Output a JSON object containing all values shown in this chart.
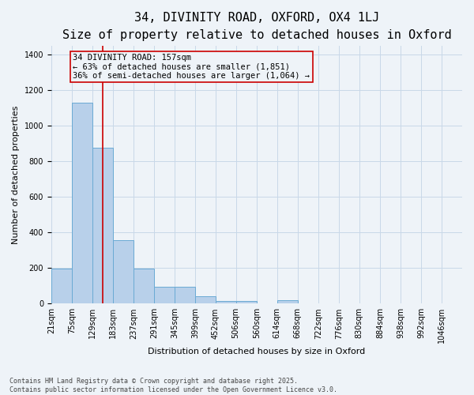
{
  "title_line1": "34, DIVINITY ROAD, OXFORD, OX4 1LJ",
  "title_line2": "Size of property relative to detached houses in Oxford",
  "xlabel": "Distribution of detached houses by size in Oxford",
  "ylabel": "Number of detached properties",
  "bar_edges": [
    21,
    75,
    129,
    183,
    237,
    291,
    345,
    399,
    452,
    506,
    560,
    614,
    668,
    722,
    776,
    830,
    884,
    938,
    992,
    1046,
    1100
  ],
  "bar_heights": [
    195,
    1130,
    875,
    355,
    195,
    95,
    95,
    40,
    15,
    15,
    0,
    20,
    0,
    0,
    0,
    0,
    0,
    0,
    0,
    0
  ],
  "bar_color": "#b8d0ea",
  "bar_edge_color": "#6aaad4",
  "grid_color": "#c8d8e8",
  "bg_color": "#eef3f8",
  "vline_x": 157,
  "vline_color": "#cc0000",
  "annotation_text": "34 DIVINITY ROAD: 157sqm\n← 63% of detached houses are smaller (1,851)\n36% of semi-detached houses are larger (1,064) →",
  "ylim": [
    0,
    1450
  ],
  "yticks": [
    0,
    200,
    400,
    600,
    800,
    1000,
    1200,
    1400
  ],
  "footer_line1": "Contains HM Land Registry data © Crown copyright and database right 2025.",
  "footer_line2": "Contains public sector information licensed under the Open Government Licence v3.0.",
  "title_fontsize": 11,
  "subtitle_fontsize": 9,
  "tick_label_fontsize": 7,
  "axis_label_fontsize": 8,
  "annotation_fontsize": 7.5,
  "footer_fontsize": 6
}
